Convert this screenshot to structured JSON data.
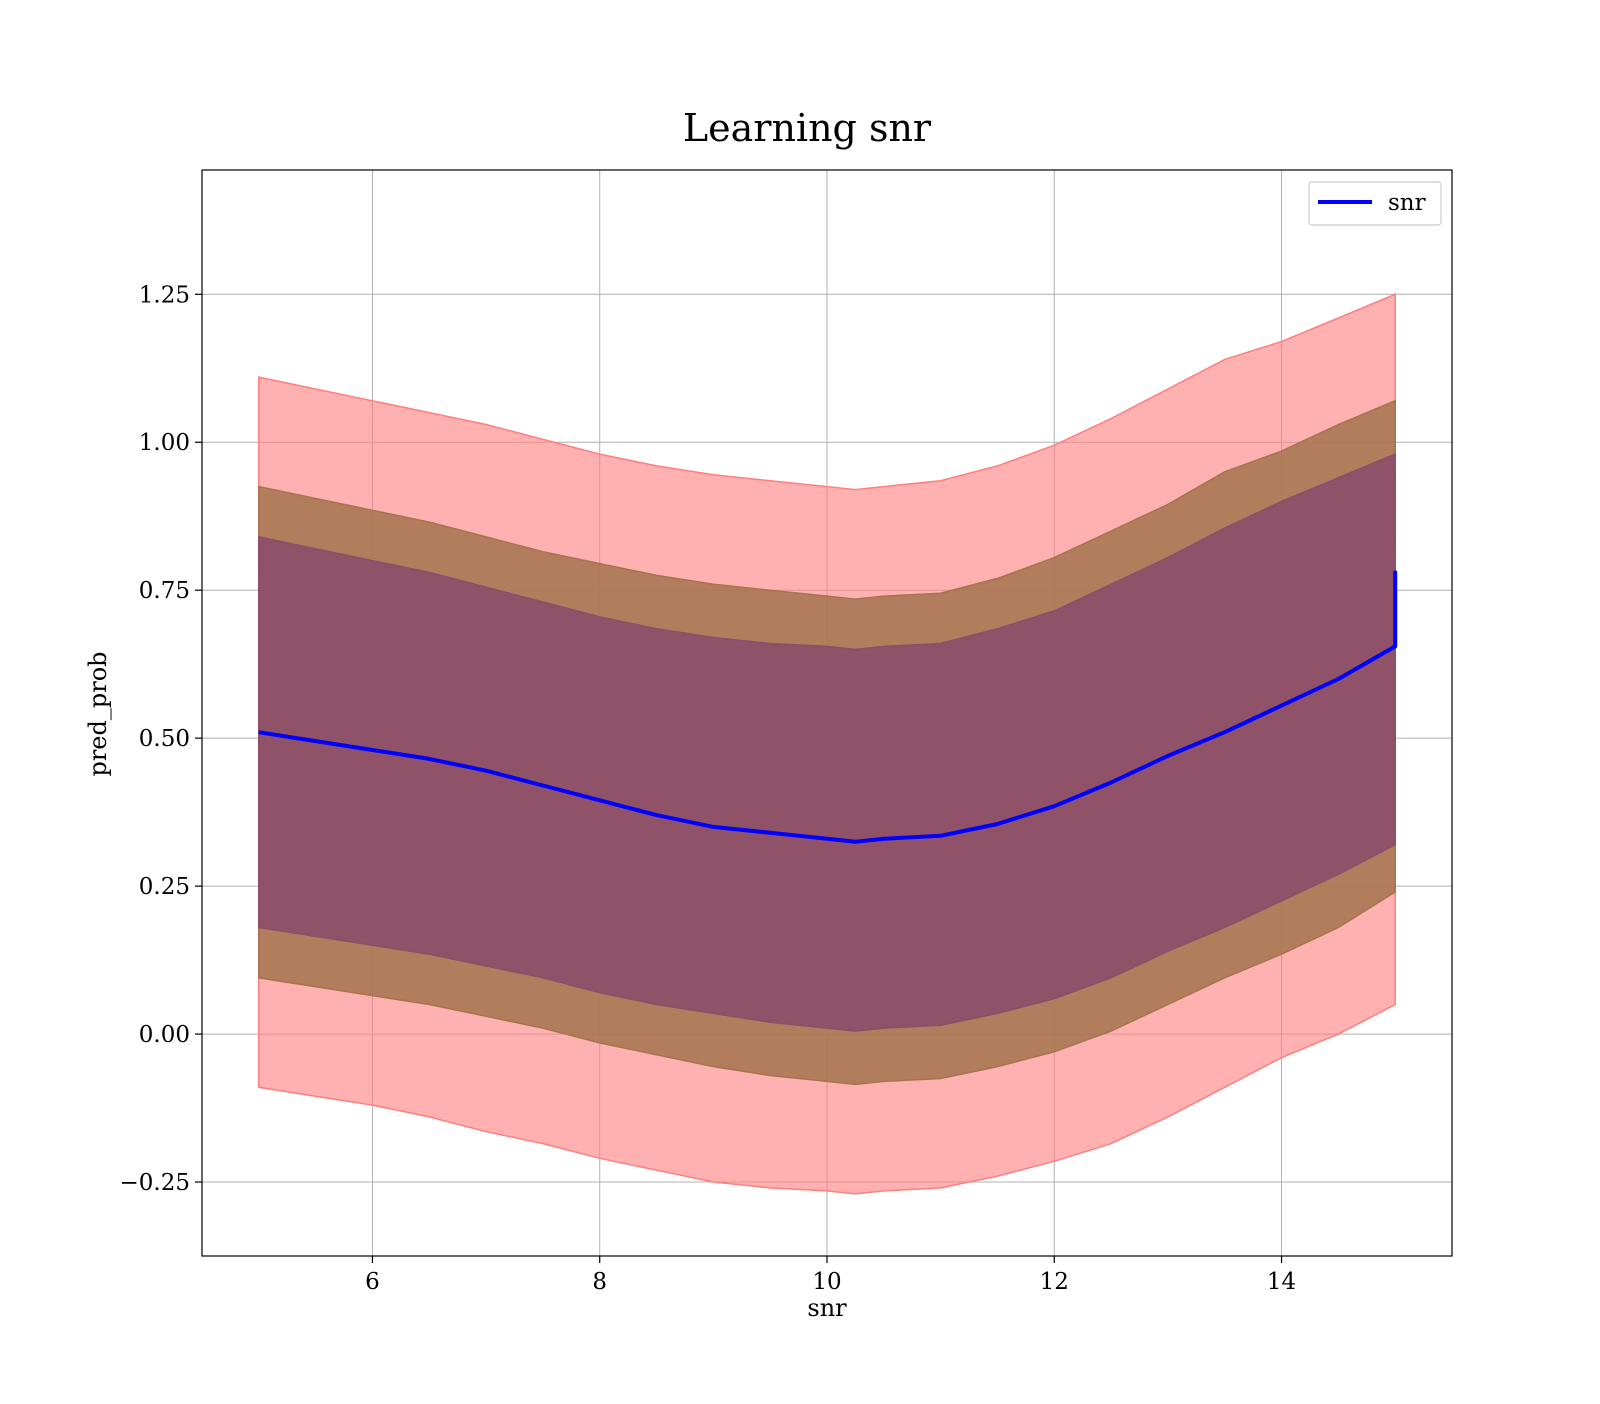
{
  "chart_data": {
    "type": "area",
    "title": "Learning snr",
    "xlabel": "snr",
    "ylabel": "pred_prob",
    "xlim": [
      4.5,
      15.5
    ],
    "ylim": [
      -0.375,
      1.46
    ],
    "xticks": [
      6,
      8,
      10,
      12,
      14
    ],
    "yticks": [
      -0.25,
      0.0,
      0.25,
      0.5,
      0.75,
      1.0,
      1.25
    ],
    "ytick_labels": [
      "−0.25",
      "0.00",
      "0.25",
      "0.50",
      "0.75",
      "1.00",
      "1.25"
    ],
    "grid": true,
    "legend": {
      "position": "top-right",
      "entries": [
        "snr"
      ]
    },
    "colors": {
      "line": "#0000ff",
      "band_outer": "#ff7f7f",
      "band_middle": "#a5744f",
      "band_inner": "#8c4e69",
      "axis": "#000000",
      "grid": "#b0b0b0"
    },
    "x": [
      5.0,
      5.5,
      6.0,
      6.5,
      7.0,
      7.5,
      8.0,
      8.5,
      9.0,
      9.5,
      10.0,
      10.25,
      10.5,
      11.0,
      11.5,
      12.0,
      12.5,
      13.0,
      13.5,
      14.0,
      14.5,
      15.0
    ],
    "series": [
      {
        "name": "snr",
        "values": [
          0.51,
          0.495,
          0.48,
          0.465,
          0.445,
          0.42,
          0.395,
          0.37,
          0.35,
          0.34,
          0.33,
          0.325,
          0.33,
          0.335,
          0.355,
          0.385,
          0.425,
          0.47,
          0.51,
          0.555,
          0.6,
          0.655
        ],
        "end_spike": 0.78
      }
    ],
    "bands": [
      {
        "level": "outer",
        "upper": [
          1.11,
          1.09,
          1.07,
          1.05,
          1.03,
          1.005,
          0.98,
          0.96,
          0.945,
          0.935,
          0.925,
          0.92,
          0.925,
          0.935,
          0.96,
          0.995,
          1.04,
          1.09,
          1.14,
          1.17,
          1.21,
          1.25
        ],
        "lower": [
          -0.09,
          -0.105,
          -0.12,
          -0.14,
          -0.165,
          -0.185,
          -0.21,
          -0.23,
          -0.25,
          -0.26,
          -0.265,
          -0.27,
          -0.265,
          -0.26,
          -0.24,
          -0.215,
          -0.185,
          -0.14,
          -0.09,
          -0.04,
          0.0,
          0.05
        ]
      },
      {
        "level": "middle",
        "upper": [
          0.925,
          0.905,
          0.885,
          0.865,
          0.84,
          0.815,
          0.795,
          0.775,
          0.76,
          0.75,
          0.74,
          0.735,
          0.74,
          0.745,
          0.77,
          0.805,
          0.85,
          0.895,
          0.95,
          0.985,
          1.03,
          1.07
        ],
        "lower": [
          0.095,
          0.08,
          0.065,
          0.05,
          0.03,
          0.01,
          -0.015,
          -0.035,
          -0.055,
          -0.07,
          -0.08,
          -0.085,
          -0.08,
          -0.075,
          -0.055,
          -0.03,
          0.005,
          0.05,
          0.095,
          0.135,
          0.18,
          0.24
        ]
      },
      {
        "level": "inner",
        "upper": [
          0.84,
          0.82,
          0.8,
          0.78,
          0.755,
          0.73,
          0.705,
          0.685,
          0.67,
          0.66,
          0.655,
          0.65,
          0.655,
          0.66,
          0.685,
          0.715,
          0.76,
          0.805,
          0.855,
          0.9,
          0.94,
          0.98
        ],
        "lower": [
          0.18,
          0.165,
          0.15,
          0.135,
          0.115,
          0.095,
          0.07,
          0.05,
          0.035,
          0.02,
          0.01,
          0.005,
          0.01,
          0.015,
          0.035,
          0.06,
          0.095,
          0.14,
          0.18,
          0.225,
          0.27,
          0.32
        ]
      }
    ]
  }
}
